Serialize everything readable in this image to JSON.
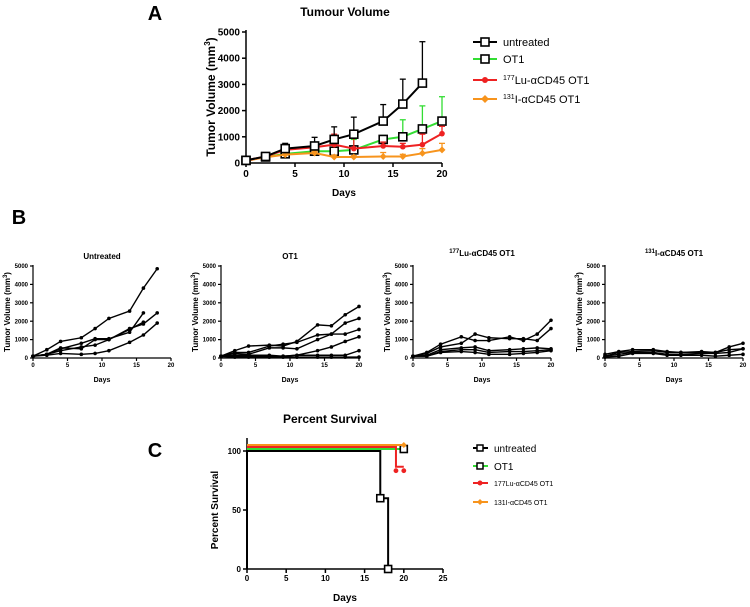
{
  "panel_letters": {
    "a": "A",
    "b": "B",
    "c": "C"
  },
  "colors": {
    "untreated": "#000000",
    "ot1": "#33dd33",
    "lu": "#ee2222",
    "iodine": "#f7941d"
  },
  "chart_data": [
    {
      "id": "A",
      "type": "line",
      "title": "Tumour Volume",
      "xlabel": "Days",
      "ylabel": {
        "main": "Tumor Volume (mm",
        "sup": "3",
        "end": ")"
      },
      "xlim": [
        0,
        20
      ],
      "ylim": [
        0,
        5000
      ],
      "xticks": [
        0,
        5,
        10,
        15,
        20
      ],
      "yticks": [
        0,
        1000,
        2000,
        3000,
        4000,
        5000
      ],
      "x": [
        0,
        2,
        4,
        7,
        9,
        11,
        14,
        16,
        18,
        20
      ],
      "series": [
        {
          "key": "ot1",
          "name": "OT1",
          "marker": "square",
          "values": [
            100,
            230,
            350,
            450,
            450,
            500,
            900,
            1000,
            1300,
            1600
          ],
          "error_upper": [
            100,
            260,
            420,
            600,
            1050,
            900,
            1050,
            1650,
            2180,
            2530
          ]
        },
        {
          "key": "iodine",
          "name": "131I-αCD45 OT1",
          "sup": "131",
          "label": "I-αCD45 OT1",
          "marker": "diamond",
          "values": [
            80,
            220,
            320,
            380,
            230,
            230,
            250,
            250,
            370,
            500
          ],
          "error_upper": [
            80,
            240,
            380,
            450,
            300,
            280,
            400,
            330,
            550,
            750
          ]
        },
        {
          "key": "lu",
          "name": "177Lu-αCD45 OT1",
          "sup": "177",
          "label": "Lu-αCD45 OT1",
          "marker": "circle",
          "values": [
            100,
            250,
            500,
            600,
            700,
            550,
            650,
            620,
            700,
            1120
          ],
          "error_upper": [
            100,
            280,
            600,
            700,
            1100,
            1000,
            800,
            750,
            1100,
            1400
          ]
        },
        {
          "key": "untreated",
          "name": "untreated",
          "marker": "square",
          "values": [
            100,
            250,
            550,
            650,
            900,
            1100,
            1600,
            2250,
            3050,
            null
          ],
          "error_upper": [
            120,
            280,
            750,
            980,
            1380,
            1750,
            2230,
            3200,
            4630,
            null
          ]
        }
      ],
      "legend_position": "right"
    },
    {
      "id": "B",
      "type": "line",
      "xlabel": "Days",
      "ylabel": {
        "main": "Tumor Volume (mm",
        "sup": "3",
        "end": ")"
      },
      "xlim": [
        0,
        20
      ],
      "ylim": [
        0,
        5000
      ],
      "xticks": [
        0,
        5,
        10,
        15,
        20
      ],
      "yticks": [
        0,
        1000,
        2000,
        3000,
        4000,
        5000
      ],
      "x": [
        0,
        2,
        4,
        7,
        9,
        11,
        14,
        16,
        18,
        20
      ],
      "subplots": [
        {
          "title": "Untreated",
          "title_sup": "",
          "lines": [
            [
              100,
              450,
              900,
              1100,
              1600,
              2150,
              2550,
              3800,
              4850
            ],
            [
              100,
              200,
              550,
              500,
              1000,
              1000,
              1600,
              1850,
              2450
            ],
            [
              100,
              200,
              500,
              800,
              1050,
              1050,
              1400,
              2450
            ],
            [
              100,
              200,
              400,
              600,
              700,
              1000,
              1550,
              1950
            ],
            [
              100,
              150,
              250,
              200,
              250,
              400,
              850,
              1250,
              1900
            ]
          ]
        },
        {
          "title": "OT1",
          "title_sup": "",
          "lines": [
            [
              100,
              400,
              650,
              700,
              650,
              900,
              1800,
              1750,
              2350,
              2800
            ],
            [
              100,
              300,
              300,
              650,
              750,
              850,
              1250,
              1300,
              1900,
              2150
            ],
            [
              100,
              250,
              200,
              550,
              550,
              500,
              1000,
              1300,
              1300,
              1550
            ],
            [
              100,
              150,
              150,
              150,
              100,
              150,
              400,
              600,
              900,
              1150
            ],
            [
              100,
              100,
              100,
              100,
              100,
              150,
              150,
              150,
              150,
              400
            ],
            [
              80,
              50,
              50,
              50,
              50,
              50,
              50,
              50,
              50,
              50
            ]
          ]
        },
        {
          "title": "Lu-αCD45 OT1",
          "title_sup": "177",
          "lines": [
            [
              100,
              300,
              750,
              1150,
              950,
              950,
              1150,
              950,
              1300,
              2050
            ],
            [
              100,
              250,
              600,
              800,
              1300,
              1100,
              1050,
              1050,
              950,
              1600
            ],
            [
              100,
              150,
              450,
              550,
              600,
              400,
              450,
              500,
              550,
              500
            ],
            [
              100,
              100,
              350,
              450,
              450,
              300,
              350,
              350,
              400,
              450
            ],
            [
              100,
              100,
              300,
              350,
              300,
              200,
              200,
              250,
              300,
              400
            ]
          ]
        },
        {
          "title": "I-αCD45 OT1",
          "title_sup": "131",
          "lines": [
            [
              200,
              350,
              450,
              450,
              350,
              300,
              350,
              300,
              600,
              800
            ],
            [
              100,
              300,
              350,
              400,
              300,
              300,
              300,
              300,
              450,
              500
            ],
            [
              100,
              200,
              300,
              300,
              200,
              200,
              250,
              250,
              300,
              500
            ],
            [
              50,
              100,
              250,
              250,
              150,
              150,
              150,
              100,
              150,
              200
            ]
          ]
        }
      ]
    },
    {
      "id": "C",
      "type": "line",
      "subtype": "survival-step",
      "title": "Percent Survival",
      "xlabel": "Days",
      "ylabel": "Percent Survival",
      "xlim": [
        0,
        25
      ],
      "ylim": [
        0,
        100
      ],
      "xticks": [
        0,
        5,
        10,
        15,
        20,
        25
      ],
      "yticks": [
        0,
        50,
        100
      ],
      "series": [
        {
          "key": "untreated",
          "name": "untreated",
          "marker": "square",
          "steps": [
            [
              0,
              100
            ],
            [
              17,
              60
            ],
            [
              18,
              0
            ]
          ],
          "end": 18,
          "points": [
            [
              17,
              60
            ],
            [
              18,
              0
            ]
          ]
        },
        {
          "key": "ot1",
          "name": "OT1",
          "marker": "square",
          "steps": [
            [
              0,
              100
            ]
          ],
          "end": 20,
          "points": [
            [
              20,
              100
            ]
          ]
        },
        {
          "key": "lu",
          "name": "177Lu-αCD45 OT1",
          "marker": "circle",
          "steps": [
            [
              0,
              100
            ],
            [
              19,
              83.3
            ]
          ],
          "end": 20,
          "points": [
            [
              19,
              83.3
            ],
            [
              20,
              83.3
            ]
          ]
        },
        {
          "key": "iodine",
          "name": "131I-αCD45 OT1",
          "marker": "diamond",
          "steps": [
            [
              0,
              100
            ]
          ],
          "end": 20,
          "points": [
            [
              20,
              100
            ]
          ]
        }
      ],
      "legend_position": "right"
    }
  ]
}
